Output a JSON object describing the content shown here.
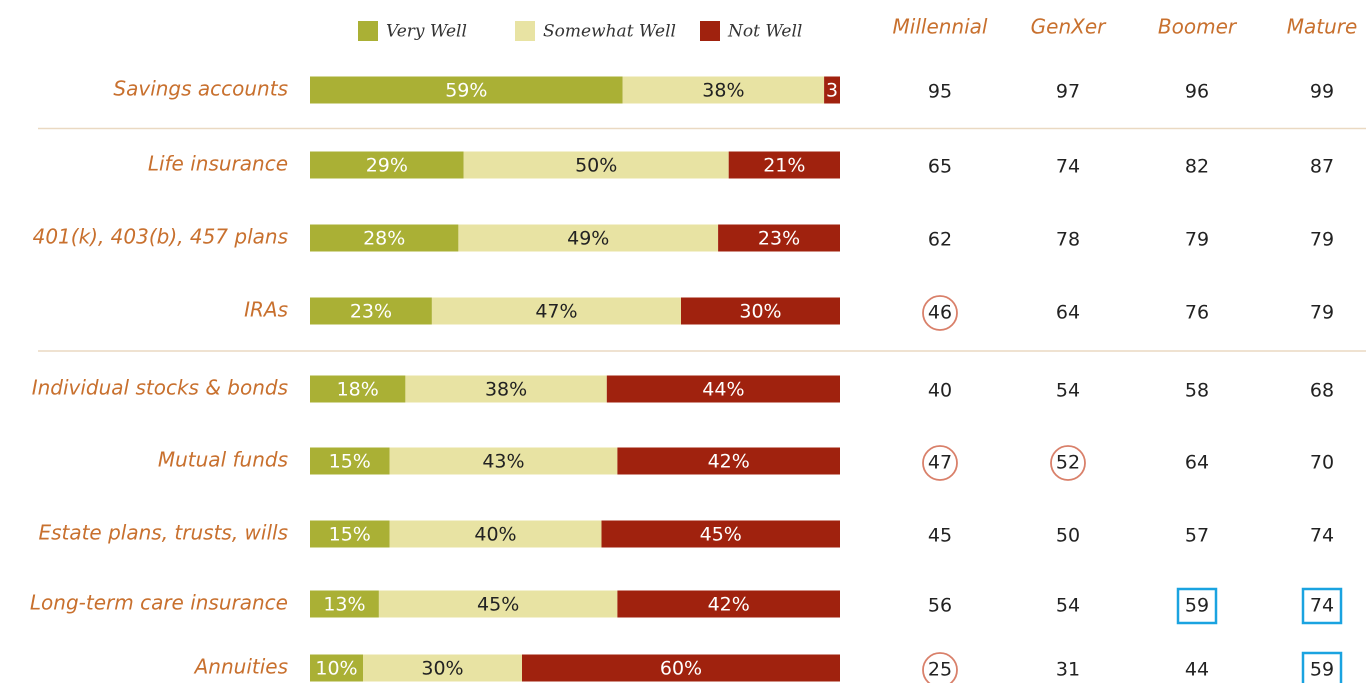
{
  "chart_data": {
    "type": "bar",
    "orientation": "horizontal",
    "stacked": true,
    "categories": [
      "Savings accounts",
      "Life insurance",
      "401(k), 403(b), 457 plans",
      "IRAs",
      "Individual stocks & bonds",
      "Mutual funds",
      "Estate plans, trusts, wills",
      "Long-term care insurance",
      "Annuities"
    ],
    "series": [
      {
        "name": "Very Well",
        "color": "#aab035",
        "label_color": "#ffffff",
        "values": [
          59,
          29,
          28,
          23,
          18,
          15,
          15,
          13,
          10
        ],
        "value_labels": [
          "59%",
          "29%",
          "28%",
          "23%",
          "18%",
          "15%",
          "15%",
          "13%",
          "10%"
        ]
      },
      {
        "name": "Somewhat Well",
        "color": "#e8e3a3",
        "label_color": "#222222",
        "values": [
          38,
          50,
          49,
          47,
          38,
          43,
          40,
          45,
          30
        ],
        "value_labels": [
          "38%",
          "50%",
          "49%",
          "47%",
          "38%",
          "43%",
          "40%",
          "45%",
          "30%"
        ]
      },
      {
        "name": "Not Well",
        "color": "#a0220e",
        "label_color": "#ffffff",
        "values": [
          3,
          21,
          23,
          30,
          44,
          42,
          45,
          42,
          60
        ],
        "value_labels": [
          "3",
          "21%",
          "23%",
          "30%",
          "44%",
          "42%",
          "45%",
          "42%",
          "60%"
        ]
      }
    ],
    "xlim": [
      0,
      100
    ],
    "separators_after": [
      0,
      3
    ]
  },
  "table": {
    "columns": [
      "Millennial",
      "GenXer",
      "Boomer",
      "Mature"
    ],
    "rows": [
      [
        95,
        97,
        96,
        99
      ],
      [
        65,
        74,
        82,
        87
      ],
      [
        62,
        78,
        79,
        79
      ],
      [
        46,
        64,
        76,
        79
      ],
      [
        40,
        54,
        58,
        68
      ],
      [
        47,
        52,
        64,
        70
      ],
      [
        45,
        50,
        57,
        74
      ],
      [
        56,
        54,
        59,
        74
      ],
      [
        25,
        31,
        44,
        59
      ]
    ],
    "highlights": [
      {
        "row": 3,
        "col": 0,
        "shape": "circle",
        "color": "#d9806a"
      },
      {
        "row": 5,
        "col": 0,
        "shape": "circle",
        "color": "#d9806a"
      },
      {
        "row": 5,
        "col": 1,
        "shape": "circle",
        "color": "#d9806a"
      },
      {
        "row": 8,
        "col": 0,
        "shape": "circle",
        "color": "#d9806a"
      },
      {
        "row": 7,
        "col": 2,
        "shape": "box",
        "color": "#1aa3e0"
      },
      {
        "row": 7,
        "col": 3,
        "shape": "box",
        "color": "#1aa3e0"
      },
      {
        "row": 8,
        "col": 3,
        "shape": "box",
        "color": "#1aa3e0"
      }
    ]
  }
}
